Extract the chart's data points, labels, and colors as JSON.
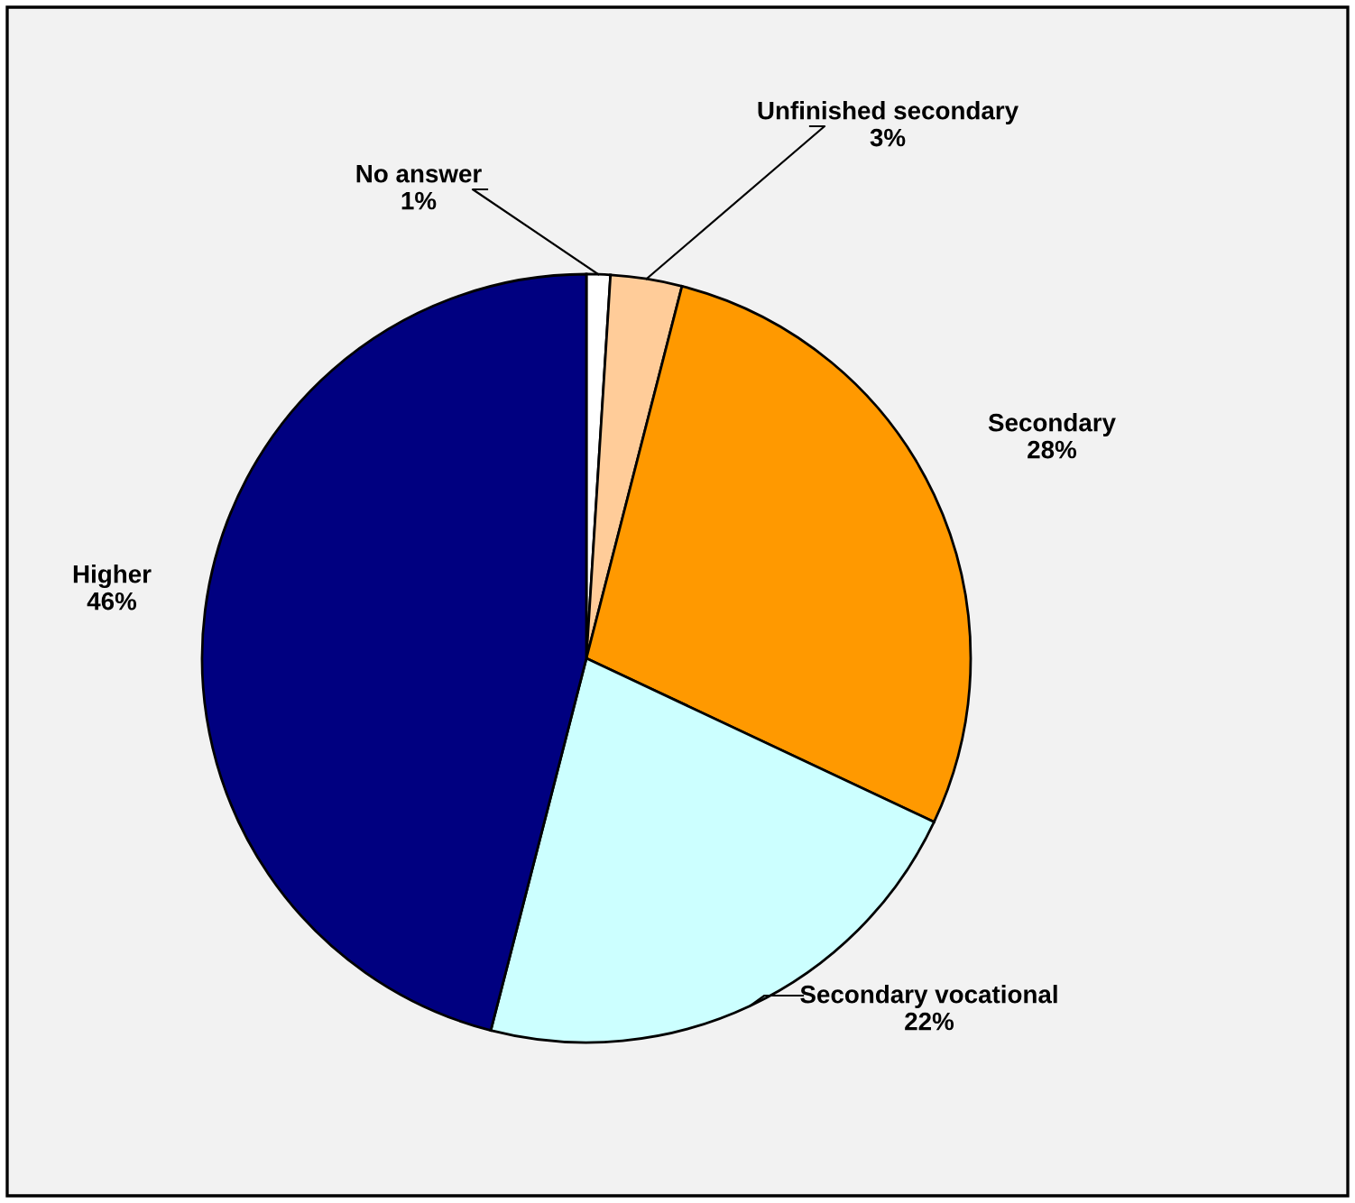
{
  "chart_data": {
    "type": "pie",
    "categories": [
      "No answer",
      "Unfinished secondary",
      "Secondary",
      "Secondary vocational",
      "Higher"
    ],
    "values": [
      1,
      3,
      28,
      22,
      46
    ],
    "colors": [
      "#ffffff",
      "#ffcc99",
      "#ff9900",
      "#ccffff",
      "#000080"
    ],
    "value_labels": [
      "1%",
      "3%",
      "28%",
      "22%",
      "46%"
    ]
  }
}
